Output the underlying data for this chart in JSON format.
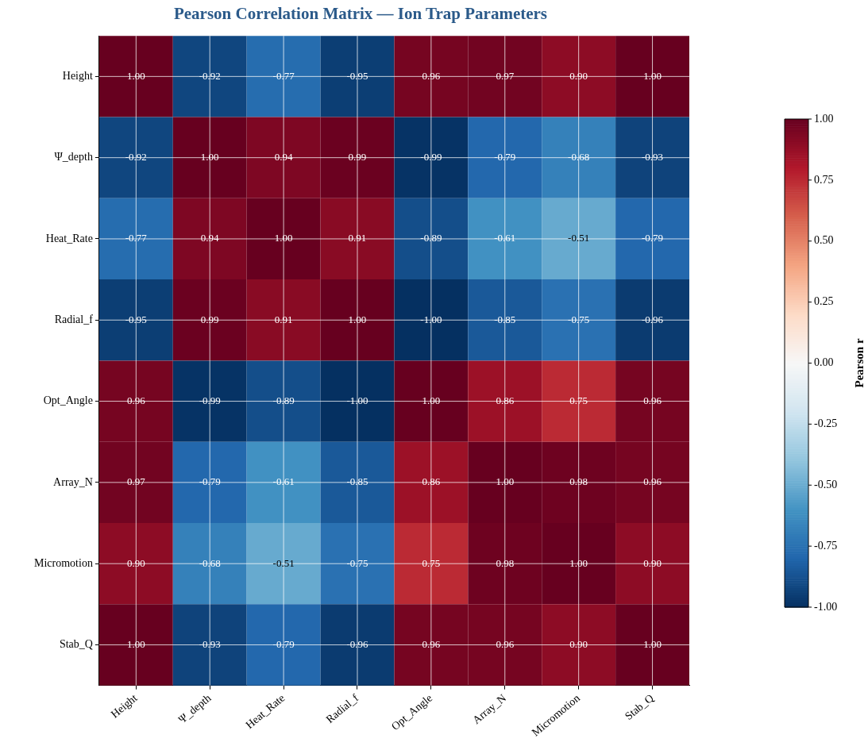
{
  "chart_data": {
    "type": "heatmap",
    "title": "Pearson Correlation Matrix — Ion Trap Parameters",
    "categories": [
      "Height",
      "Ψ_depth",
      "Heat_Rate",
      "Radial_f",
      "Opt_Angle",
      "Array_N",
      "Micromotion",
      "Stab_Q"
    ],
    "y_categories": [
      "Height",
      "Ψ_depth",
      "Heat_Rate",
      "Radial_f",
      "Opt_Angle",
      "Array_N",
      "Micromotion",
      "Stab_Q"
    ],
    "cells": [
      [
        1.0,
        -0.92,
        -0.77,
        -0.95,
        0.96,
        0.97,
        0.9,
        1.0
      ],
      [
        -0.92,
        1.0,
        0.94,
        0.99,
        -0.99,
        -0.79,
        -0.68,
        -0.93
      ],
      [
        -0.77,
        0.94,
        1.0,
        0.91,
        -0.89,
        -0.61,
        -0.51,
        -0.79
      ],
      [
        -0.95,
        0.99,
        0.91,
        1.0,
        -1.0,
        -0.85,
        -0.75,
        -0.96
      ],
      [
        0.96,
        -0.99,
        -0.89,
        -1.0,
        1.0,
        0.86,
        0.75,
        0.96
      ],
      [
        0.97,
        -0.79,
        -0.61,
        -0.85,
        0.86,
        1.0,
        0.98,
        0.96
      ],
      [
        0.9,
        -0.68,
        -0.51,
        -0.75,
        0.75,
        0.98,
        1.0,
        0.9
      ],
      [
        1.0,
        -0.93,
        -0.79,
        -0.96,
        0.96,
        0.96,
        0.9,
        1.0
      ]
    ],
    "cell_labels": [
      [
        "1.00",
        "-0.92",
        "-0.77",
        "-0.95",
        "0.96",
        "0.97",
        "0.90",
        "1.00"
      ],
      [
        "-0.92",
        "1.00",
        "0.94",
        "0.99",
        "-0.99",
        "-0.79",
        "-0.68",
        "-0.93"
      ],
      [
        "-0.77",
        "0.94",
        "1.00",
        "0.91",
        "-0.89",
        "-0.61",
        "-0.51",
        "-0.79"
      ],
      [
        "-0.95",
        "0.99",
        "0.91",
        "1.00",
        "-1.00",
        "-0.85",
        "-0.75",
        "-0.96"
      ],
      [
        "0.96",
        "-0.99",
        "-0.89",
        "-1.00",
        "1.00",
        "0.86",
        "0.75",
        "0.96"
      ],
      [
        "0.97",
        "-0.79",
        "-0.61",
        "-0.85",
        "0.86",
        "1.00",
        "0.98",
        "0.96"
      ],
      [
        "0.90",
        "-0.68",
        "-0.51",
        "-0.75",
        "0.75",
        "0.98",
        "1.00",
        "0.90"
      ],
      [
        "1.00",
        "-0.93",
        "-0.79",
        "-0.96",
        "0.96",
        "0.96",
        "0.90",
        "1.00"
      ]
    ],
    "clim": [
      -1,
      1
    ],
    "cticks": [
      {
        "value": -1,
        "label": "-1.00"
      },
      {
        "value": -0.75,
        "label": "-0.75"
      },
      {
        "value": -0.5,
        "label": "-0.50"
      },
      {
        "value": -0.25,
        "label": "-0.25"
      },
      {
        "value": 0,
        "label": "0.00"
      },
      {
        "value": 0.25,
        "label": "0.25"
      },
      {
        "value": 0.5,
        "label": "0.50"
      },
      {
        "value": 0.75,
        "label": "0.75"
      },
      {
        "value": 1,
        "label": "1.00"
      }
    ],
    "clabel": "Pearson r",
    "grid": true
  }
}
